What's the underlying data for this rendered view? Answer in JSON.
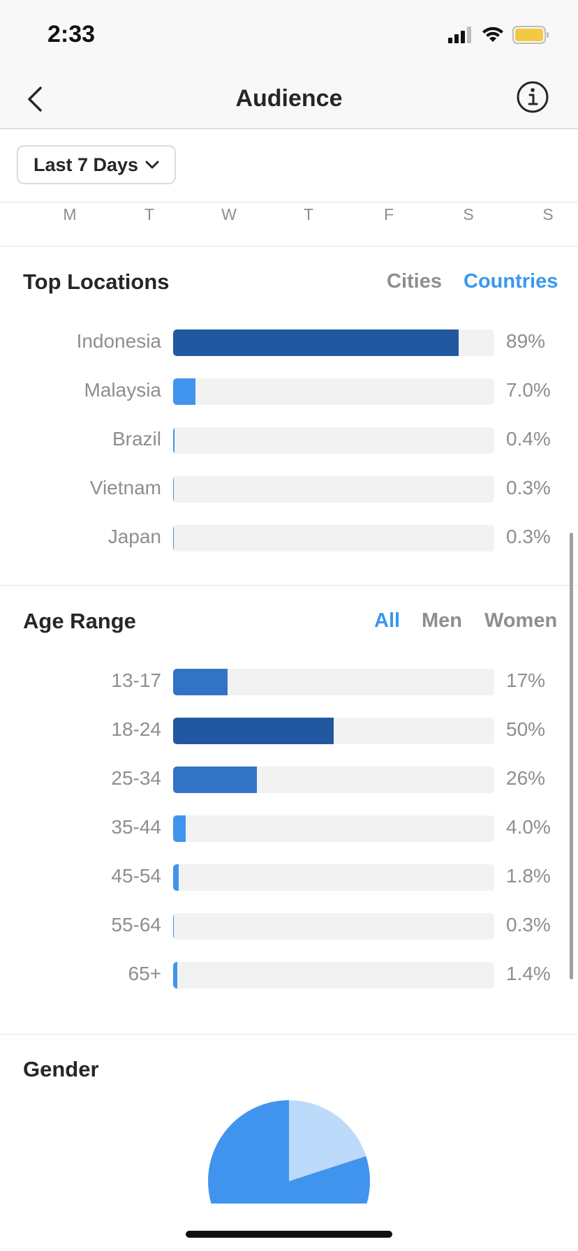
{
  "status_bar": {
    "time": "2:33"
  },
  "nav": {
    "title": "Audience"
  },
  "filter": {
    "period": "Last 7 Days"
  },
  "days": [
    "M",
    "T",
    "W",
    "T",
    "F",
    "S",
    "S"
  ],
  "top_locations": {
    "title": "Top Locations",
    "tabs": {
      "cities": "Cities",
      "countries": "Countries",
      "active": "countries"
    },
    "rows": [
      {
        "label": "Indonesia",
        "value_text": "89%",
        "percent": 89,
        "color": "#22589f"
      },
      {
        "label": "Malaysia",
        "value_text": "7.0%",
        "percent": 7.0,
        "color": "#4194ee"
      },
      {
        "label": "Brazil",
        "value_text": "0.4%",
        "percent": 0.4,
        "color": "#4194ee"
      },
      {
        "label": "Vietnam",
        "value_text": "0.3%",
        "percent": 0.3,
        "color": "#4194ee"
      },
      {
        "label": "Japan",
        "value_text": "0.3%",
        "percent": 0.3,
        "color": "#4194ee"
      }
    ]
  },
  "age_range": {
    "title": "Age Range",
    "tabs": {
      "all": "All",
      "men": "Men",
      "women": "Women",
      "active": "all"
    },
    "rows": [
      {
        "label": "13-17",
        "value_text": "17%",
        "percent": 17,
        "color": "#3373c6"
      },
      {
        "label": "18-24",
        "value_text": "50%",
        "percent": 50,
        "color": "#22589f"
      },
      {
        "label": "25-34",
        "value_text": "26%",
        "percent": 26,
        "color": "#3373c6"
      },
      {
        "label": "35-44",
        "value_text": "4.0%",
        "percent": 4.0,
        "color": "#4194ee"
      },
      {
        "label": "45-54",
        "value_text": "1.8%",
        "percent": 1.8,
        "color": "#4194ee"
      },
      {
        "label": "55-64",
        "value_text": "0.3%",
        "percent": 0.3,
        "color": "#4194ee"
      },
      {
        "label": "65+",
        "value_text": "1.4%",
        "percent": 1.4,
        "color": "#4194ee"
      }
    ]
  },
  "gender": {
    "title": "Gender",
    "slices": [
      {
        "share": 0.2,
        "color": "#bcdaf9"
      },
      {
        "share": 0.8,
        "color": "#4194ee"
      }
    ]
  },
  "colors": {
    "accent": "#3897f0",
    "muted_text": "#8e8e8e",
    "track": "#f2f2f2"
  },
  "icons": [
    "back-chevron-icon",
    "info-icon",
    "chevron-down-icon",
    "signal-icon",
    "wifi-icon",
    "battery-icon"
  ]
}
